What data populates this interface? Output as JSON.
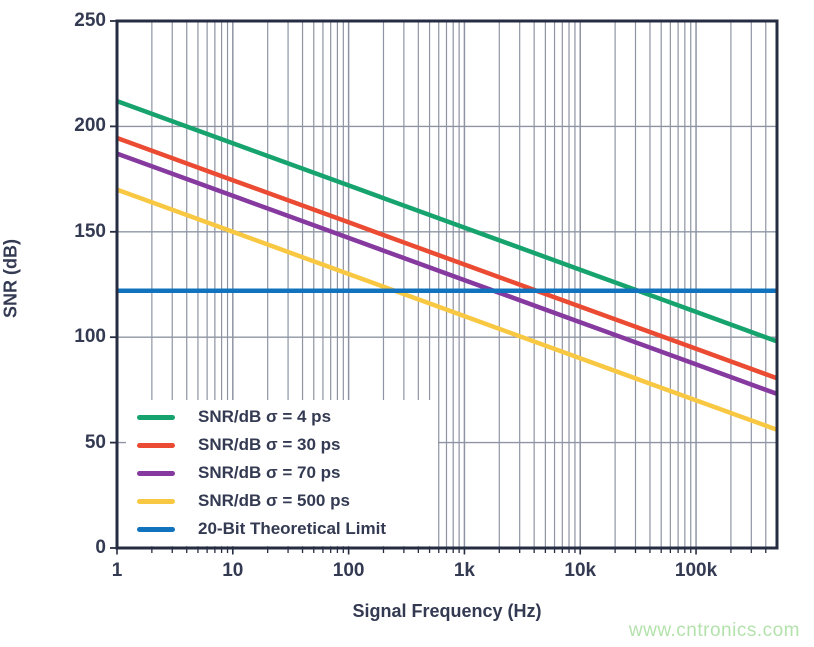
{
  "figure": {
    "watermark": "www.cntronics.com"
  },
  "axes": {
    "x_label": "Signal Frequency (Hz)",
    "y_label": "SNR (dB)",
    "x_ticks": [
      {
        "f": 1,
        "label": "1"
      },
      {
        "f": 10,
        "label": "10"
      },
      {
        "f": 100,
        "label": "100"
      },
      {
        "f": 1000,
        "label": "1k"
      },
      {
        "f": 10000,
        "label": "10k"
      },
      {
        "f": 100000,
        "label": "100k"
      }
    ],
    "y_ticks": [
      {
        "v": 0,
        "label": "0"
      },
      {
        "v": 50,
        "label": "50"
      },
      {
        "v": 100,
        "label": "100"
      },
      {
        "v": 150,
        "label": "150"
      },
      {
        "v": 200,
        "label": "200"
      },
      {
        "v": 250,
        "label": "250"
      }
    ]
  },
  "chart_data": {
    "type": "line",
    "title": "",
    "xlabel": "Signal Frequency (Hz)",
    "ylabel": "SNR (dB)",
    "x_scale": "log",
    "xlim": [
      1,
      500000
    ],
    "ylim": [
      0,
      250
    ],
    "grid": {
      "x_major": true,
      "x_minor": true,
      "y_major": true,
      "y_minor": false
    },
    "legend_position": "lower-left",
    "x": [
      1,
      10,
      100,
      1000,
      10000,
      100000,
      500000
    ],
    "series": [
      {
        "name": "SNR/dB σ = 4 ps",
        "color": "#16A36E",
        "values": [
          212.0,
          192.0,
          172.0,
          152.0,
          132.0,
          112.0,
          98.0
        ]
      },
      {
        "name": "SNR/dB σ = 30 ps",
        "color": "#EA4B32",
        "values": [
          194.5,
          174.5,
          154.5,
          134.5,
          114.5,
          94.5,
          80.5
        ]
      },
      {
        "name": "SNR/dB σ = 70 ps",
        "color": "#86399F",
        "values": [
          187.1,
          167.1,
          147.1,
          127.1,
          107.1,
          87.1,
          73.1
        ]
      },
      {
        "name": "SNR/dB σ = 500 ps",
        "color": "#F9C843",
        "values": [
          170.0,
          150.0,
          130.0,
          110.0,
          90.0,
          70.0,
          56.1
        ]
      },
      {
        "name": "20-Bit Theoretical Limit",
        "color": "#1173BD",
        "values": [
          122.0,
          122.0,
          122.0,
          122.0,
          122.0,
          122.0,
          122.0
        ]
      }
    ]
  },
  "colors": {
    "frame": "#262C42",
    "grid": "#8E94A3",
    "text": "#333A52",
    "watermark": "#B4E2AC",
    "background": "#FFFFFF"
  }
}
